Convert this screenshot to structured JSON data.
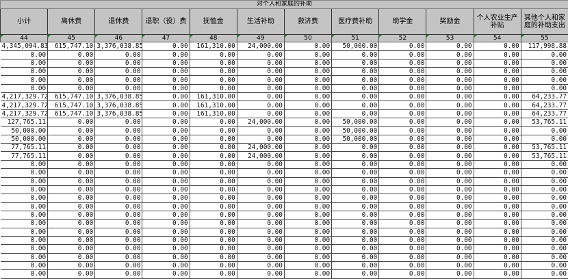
{
  "title": "对个人和家庭的补助",
  "headers": [
    "小计",
    "离休费",
    "退休费",
    "退职（役）费",
    "抚恤金",
    "生活补助",
    "救济费",
    "医疗费补助",
    "助学金",
    "奖励金",
    "个人农业生产补贴",
    "其他个人和家庭的补助支出"
  ],
  "column_numbers": [
    "44",
    "45",
    "46",
    "47",
    "48",
    "49",
    "50",
    "51",
    "52",
    "53",
    "54",
    "55"
  ],
  "marker_color": "#1a8a1a",
  "rows": [
    [
      "4,345,094.83",
      "615,747.10",
      "3,376,038.85",
      "0.00",
      "161,310.00",
      "24,000.00",
      "0.00",
      "50,000.00",
      "0.00",
      "0.00",
      "0.00",
      "117,998.88"
    ],
    [
      "0.00",
      "0.00",
      "0.00",
      "0.00",
      "0.00",
      "0.00",
      "0.00",
      "0.00",
      "0.00",
      "0.00",
      "0.00",
      "0.00"
    ],
    [
      "0.00",
      "0.00",
      "0.00",
      "0.00",
      "0.00",
      "0.00",
      "0.00",
      "0.00",
      "0.00",
      "0.00",
      "0.00",
      "0.00"
    ],
    [
      "0.00",
      "0.00",
      "0.00",
      "0.00",
      "0.00",
      "0.00",
      "0.00",
      "0.00",
      "0.00",
      "0.00",
      "0.00",
      "0.00"
    ],
    [
      "0.00",
      "0.00",
      "0.00",
      "0.00",
      "0.00",
      "0.00",
      "0.00",
      "0.00",
      "0.00",
      "0.00",
      "0.00",
      "0.00"
    ],
    [
      "0.00",
      "0.00",
      "0.00",
      "0.00",
      "0.00",
      "0.00",
      "0.00",
      "0.00",
      "0.00",
      "0.00",
      "0.00",
      "0.00"
    ],
    [
      "4,217,329.72",
      "615,747.10",
      "3,376,038.85",
      "0.00",
      "161,310.00",
      "0.00",
      "0.00",
      "0.00",
      "0.00",
      "0.00",
      "0.00",
      "64,233.77"
    ],
    [
      "4,217,329.72",
      "615,747.10",
      "3,376,038.85",
      "0.00",
      "161,310.00",
      "0.00",
      "0.00",
      "0.00",
      "0.00",
      "0.00",
      "0.00",
      "64,233.77"
    ],
    [
      "4,217,329.72",
      "615,747.10",
      "3,376,038.85",
      "0.00",
      "161,310.00",
      "0.00",
      "0.00",
      "0.00",
      "0.00",
      "0.00",
      "0.00",
      "64,233.77"
    ],
    [
      "127,765.11",
      "0.00",
      "0.00",
      "0.00",
      "0.00",
      "24,000.00",
      "0.00",
      "50,000.00",
      "0.00",
      "0.00",
      "0.00",
      "53,765.11"
    ],
    [
      "50,000.00",
      "0.00",
      "0.00",
      "0.00",
      "0.00",
      "0.00",
      "0.00",
      "50,000.00",
      "0.00",
      "0.00",
      "0.00",
      "0.00"
    ],
    [
      "50,000.00",
      "0.00",
      "0.00",
      "0.00",
      "0.00",
      "0.00",
      "0.00",
      "50,000.00",
      "0.00",
      "0.00",
      "0.00",
      "0.00"
    ],
    [
      "77,765.11",
      "0.00",
      "0.00",
      "0.00",
      "0.00",
      "24,000.00",
      "0.00",
      "0.00",
      "0.00",
      "0.00",
      "0.00",
      "53,765.11"
    ],
    [
      "77,765.11",
      "0.00",
      "0.00",
      "0.00",
      "0.00",
      "24,000.00",
      "0.00",
      "0.00",
      "0.00",
      "0.00",
      "0.00",
      "53,765.11"
    ],
    [
      "0.00",
      "0.00",
      "0.00",
      "0.00",
      "0.00",
      "0.00",
      "0.00",
      "0.00",
      "0.00",
      "0.00",
      "0.00",
      "0.00"
    ],
    [
      "0.00",
      "0.00",
      "0.00",
      "0.00",
      "0.00",
      "0.00",
      "0.00",
      "0.00",
      "0.00",
      "0.00",
      "0.00",
      "0.00"
    ],
    [
      "0.00",
      "0.00",
      "0.00",
      "0.00",
      "0.00",
      "0.00",
      "0.00",
      "0.00",
      "0.00",
      "0.00",
      "0.00",
      "0.00"
    ],
    [
      "0.00",
      "0.00",
      "0.00",
      "0.00",
      "0.00",
      "0.00",
      "0.00",
      "0.00",
      "0.00",
      "0.00",
      "0.00",
      "0.00"
    ],
    [
      "0.00",
      "0.00",
      "0.00",
      "0.00",
      "0.00",
      "0.00",
      "0.00",
      "0.00",
      "0.00",
      "0.00",
      "0.00",
      "0.00"
    ],
    [
      "0.00",
      "0.00",
      "0.00",
      "0.00",
      "0.00",
      "0.00",
      "0.00",
      "0.00",
      "0.00",
      "0.00",
      "0.00",
      "0.00"
    ],
    [
      "0.00",
      "0.00",
      "0.00",
      "0.00",
      "0.00",
      "0.00",
      "0.00",
      "0.00",
      "0.00",
      "0.00",
      "0.00",
      "0.00"
    ],
    [
      "0.00",
      "0.00",
      "0.00",
      "0.00",
      "0.00",
      "0.00",
      "0.00",
      "0.00",
      "0.00",
      "0.00",
      "0.00",
      "0.00"
    ],
    [
      "0.00",
      "0.00",
      "0.00",
      "0.00",
      "0.00",
      "0.00",
      "0.00",
      "0.00",
      "0.00",
      "0.00",
      "0.00",
      "0.00"
    ],
    [
      "0.00",
      "0.00",
      "0.00",
      "0.00",
      "0.00",
      "0.00",
      "0.00",
      "0.00",
      "0.00",
      "0.00",
      "0.00",
      "0.00"
    ],
    [
      "0.00",
      "0.00",
      "0.00",
      "0.00",
      "0.00",
      "0.00",
      "0.00",
      "0.00",
      "0.00",
      "0.00",
      "0.00",
      "0.00"
    ],
    [
      "0.00",
      "0.00",
      "0.00",
      "0.00",
      "0.00",
      "0.00",
      "0.00",
      "0.00",
      "0.00",
      "0.00",
      "0.00",
      "0.00"
    ],
    [
      "0.00",
      "0.00",
      "0.00",
      "0.00",
      "0.00",
      "0.00",
      "0.00",
      "0.00",
      "0.00",
      "0.00",
      "0.00",
      "0.00"
    ],
    [
      "0.00",
      "0.00",
      "0.00",
      "0.00",
      "0.00",
      "0.00",
      "0.00",
      "0.00",
      "0.00",
      "0.00",
      "0.00",
      "0.00"
    ]
  ]
}
